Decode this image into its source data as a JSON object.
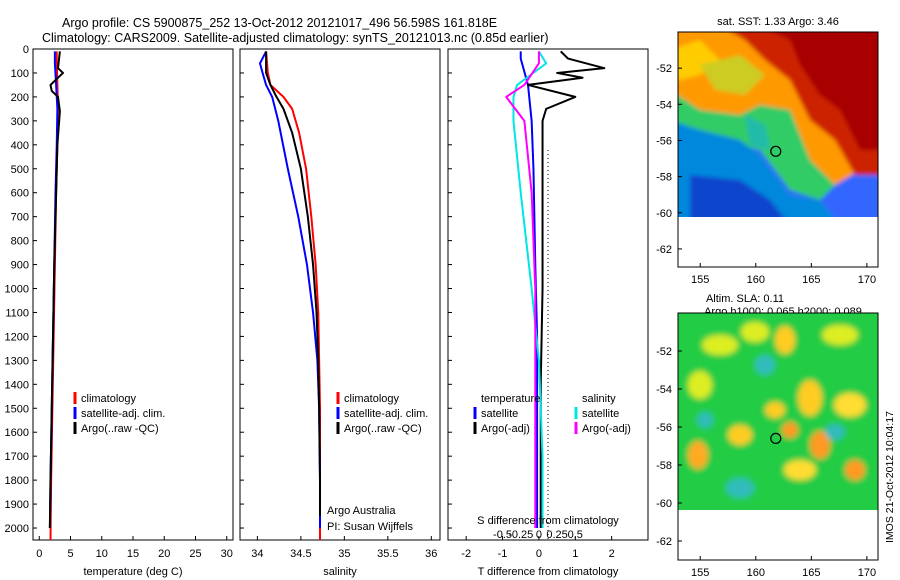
{
  "header": {
    "line1": "Argo profile: CS 5900875_252 13-Oct-2012 20121017_496 56.598S 161.818E",
    "line2": "Climatology: CARS2009. Satellite-adjusted climatology: synTS_20121013.nc (0.85d earlier)"
  },
  "colors": {
    "climatology": "#ff0000",
    "satellite": "#0000ff",
    "argo": "#000000",
    "sat_salinity": "#00e5e5",
    "argo_adj_salinity": "#ff00ff"
  },
  "footer_stamp": "IMOS 21-Oct-2012 10:04:17",
  "chart_data": [
    {
      "type": "line",
      "id": "temperature",
      "title": "",
      "xlabel": "temperature (deg C)",
      "ylabel": "",
      "xlim": [
        -1,
        31
      ],
      "ylim": [
        0,
        2050
      ],
      "y_inverted": true,
      "xticks": [
        0,
        5,
        10,
        15,
        20,
        25,
        30
      ],
      "yticks": [
        0,
        100,
        200,
        300,
        400,
        500,
        600,
        700,
        800,
        900,
        1000,
        1100,
        1200,
        1300,
        1400,
        1500,
        1600,
        1700,
        1800,
        1900,
        2000
      ],
      "legend": [
        "climatology",
        "satellite-adj. clim.",
        "Argo(..raw -QC)"
      ],
      "series": [
        {
          "name": "climatology",
          "color": "#ff0000",
          "points": [
            [
              2.8,
              10
            ],
            [
              2.8,
              60
            ],
            [
              2.9,
              150
            ],
            [
              3.0,
              250
            ],
            [
              2.9,
              400
            ],
            [
              2.7,
              600
            ],
            [
              2.5,
              900
            ],
            [
              2.3,
              1200
            ],
            [
              2.1,
              1500
            ],
            [
              1.9,
              1800
            ],
            [
              1.8,
              2050
            ]
          ]
        },
        {
          "name": "satellite-adj. clim.",
          "color": "#0000ff",
          "points": [
            [
              2.5,
              10
            ],
            [
              2.5,
              60
            ],
            [
              2.7,
              150
            ],
            [
              2.9,
              250
            ],
            [
              2.8,
              400
            ],
            [
              2.6,
              600
            ],
            [
              2.4,
              900
            ],
            [
              2.2,
              1200
            ],
            [
              2.0,
              1500
            ],
            [
              1.8,
              1800
            ],
            [
              1.7,
              2000
            ]
          ]
        },
        {
          "name": "Argo(..raw -QC)",
          "color": "#000000",
          "points": [
            [
              3.3,
              10
            ],
            [
              3.0,
              80
            ],
            [
              3.8,
              100
            ],
            [
              1.8,
              150
            ],
            [
              2.0,
              175
            ],
            [
              3.0,
              200
            ],
            [
              3.3,
              260
            ],
            [
              2.9,
              400
            ],
            [
              2.7,
              600
            ],
            [
              2.4,
              900
            ],
            [
              2.2,
              1200
            ],
            [
              2.0,
              1500
            ],
            [
              1.8,
              1800
            ],
            [
              1.7,
              2000
            ]
          ]
        }
      ]
    },
    {
      "type": "line",
      "id": "salinity",
      "title": "",
      "xlabel": "salinity",
      "ylabel": "",
      "xlim": [
        33.8,
        36.1
      ],
      "ylim": [
        0,
        2050
      ],
      "y_inverted": true,
      "xticks": [
        34,
        34.5,
        35,
        35.5,
        36
      ],
      "legend": [
        "climatology",
        "satellite-adj. clim.",
        "Argo(..raw -QC)"
      ],
      "annotations": [
        "Argo Australia",
        "PI: Susan Wijffels"
      ],
      "series": [
        {
          "name": "climatology",
          "color": "#ff0000",
          "points": [
            [
              34.1,
              10
            ],
            [
              34.12,
              100
            ],
            [
              34.15,
              150
            ],
            [
              34.3,
              200
            ],
            [
              34.4,
              250
            ],
            [
              34.48,
              350
            ],
            [
              34.56,
              500
            ],
            [
              34.62,
              700
            ],
            [
              34.67,
              900
            ],
            [
              34.7,
              1100
            ],
            [
              34.71,
              1300
            ],
            [
              34.72,
              1500
            ],
            [
              34.72,
              1800
            ],
            [
              34.72,
              2050
            ]
          ]
        },
        {
          "name": "satellite-adj. clim.",
          "color": "#0000ff",
          "points": [
            [
              34.1,
              10
            ],
            [
              34.03,
              60
            ],
            [
              34.06,
              100
            ],
            [
              34.1,
              150
            ],
            [
              34.17,
              200
            ],
            [
              34.24,
              300
            ],
            [
              34.35,
              500
            ],
            [
              34.47,
              700
            ],
            [
              34.57,
              900
            ],
            [
              34.64,
              1100
            ],
            [
              34.69,
              1300
            ],
            [
              34.71,
              1500
            ],
            [
              34.72,
              1800
            ],
            [
              34.72,
              2000
            ]
          ]
        },
        {
          "name": "Argo(..raw -QC)",
          "color": "#000000",
          "points": [
            [
              34.1,
              10
            ],
            [
              34.1,
              100
            ],
            [
              34.15,
              150
            ],
            [
              34.22,
              200
            ],
            [
              34.3,
              250
            ],
            [
              34.4,
              350
            ],
            [
              34.5,
              500
            ],
            [
              34.58,
              700
            ],
            [
              34.64,
              900
            ],
            [
              34.68,
              1100
            ],
            [
              34.7,
              1300
            ],
            [
              34.71,
              1500
            ],
            [
              34.72,
              1800
            ],
            [
              34.72,
              1950
            ]
          ]
        }
      ]
    },
    {
      "type": "line",
      "id": "difference",
      "title": "",
      "xlabel": "T difference from climatology",
      "xlabel2": "S difference from climatology",
      "xlim": [
        -2.5,
        3
      ],
      "ylim": [
        0,
        2050
      ],
      "y_inverted": true,
      "xticks": [
        -2,
        -1,
        0,
        1,
        2
      ],
      "xticks2": [
        -0.5,
        -0.25,
        0,
        0.25,
        0.5
      ],
      "legend_headers": [
        "temperature",
        "salinity"
      ],
      "legend": [
        "satellite",
        "Argo(-adj)",
        "satellite",
        "Argo(-adj)"
      ],
      "series": [
        {
          "name": "temperature satellite",
          "color": "#0000ff",
          "points": [
            [
              -0.5,
              10
            ],
            [
              -0.5,
              40
            ],
            [
              -0.3,
              150
            ],
            [
              -0.2,
              300
            ],
            [
              -0.15,
              500
            ],
            [
              -0.1,
              900
            ],
            [
              -0.05,
              1200
            ],
            [
              -0.05,
              1500
            ],
            [
              -0.05,
              1800
            ],
            [
              -0.05,
              2000
            ]
          ]
        },
        {
          "name": "temperature Argo(-adj)",
          "color": "#000000",
          "points": [
            [
              0.6,
              10
            ],
            [
              0.8,
              40
            ],
            [
              1.8,
              80
            ],
            [
              0.5,
              100
            ],
            [
              1.2,
              120
            ],
            [
              -0.3,
              150
            ],
            [
              1.0,
              200
            ],
            [
              0.2,
              250
            ],
            [
              0.1,
              300
            ],
            [
              0.1,
              600
            ],
            [
              0.1,
              1000
            ],
            [
              0.05,
              1400
            ],
            [
              0.05,
              2000
            ]
          ]
        },
        {
          "name": "salinity satellite",
          "color": "#00e5e5",
          "points": [
            [
              0.0,
              10
            ],
            [
              0.1,
              60
            ],
            [
              -0.3,
              150
            ],
            [
              -0.35,
              200
            ],
            [
              -0.35,
              300
            ],
            [
              -0.25,
              600
            ],
            [
              -0.1,
              1000
            ],
            [
              0.0,
              1300
            ],
            [
              0.05,
              1700
            ],
            [
              0.05,
              2000
            ]
          ]
        },
        {
          "name": "salinity Argo(-adj)",
          "color": "#ff00ff",
          "points": [
            [
              0.0,
              10
            ],
            [
              0.0,
              60
            ],
            [
              -0.2,
              150
            ],
            [
              -0.45,
              200
            ],
            [
              -0.2,
              300
            ],
            [
              -0.1,
              600
            ],
            [
              -0.05,
              1000
            ],
            [
              -0.05,
              1400
            ],
            [
              -0.05,
              2000
            ]
          ]
        }
      ]
    },
    {
      "type": "heatmap",
      "id": "sst_map",
      "title": "sat. SST: 1.33 Argo: 3.46",
      "xlim": [
        153,
        171
      ],
      "ylim": [
        -63,
        -50
      ],
      "xticks": [
        155,
        160,
        165,
        170
      ],
      "yticks": [
        -52,
        -54,
        -56,
        -58,
        -60,
        -62
      ],
      "marker": {
        "lon": 161.8,
        "lat": -56.6
      }
    },
    {
      "type": "heatmap",
      "id": "sla_map",
      "title": "Altim. SLA: 0.11",
      "subtitle": "Argo h1000: 0.065 h2000: 0.089",
      "xlim": [
        153,
        171
      ],
      "ylim": [
        -63,
        -50
      ],
      "xticks": [
        155,
        160,
        165,
        170
      ],
      "yticks": [
        -52,
        -54,
        -56,
        -58,
        -60,
        -62
      ],
      "marker": {
        "lon": 161.8,
        "lat": -56.6
      }
    }
  ]
}
